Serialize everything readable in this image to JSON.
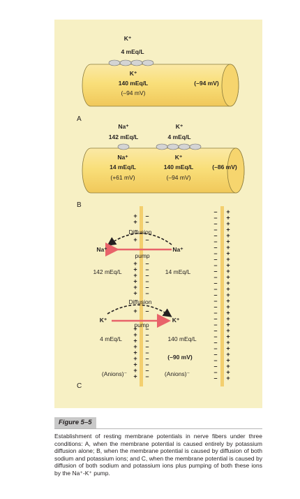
{
  "panels": {
    "a": {
      "label": "A",
      "outside_ion": "K⁺",
      "outside_conc": "4 mEq/L",
      "inside_ion": "K⁺",
      "inside_conc": "140 mEq/L",
      "inside_potential": "(–94 mV)",
      "membrane_potential": "(–94 mV)"
    },
    "b": {
      "label": "B",
      "na_outside_ion": "Na⁺",
      "na_outside_conc": "142 mEq/L",
      "k_outside_ion": "K⁺",
      "k_outside_conc": "4 mEq/L",
      "na_inside_ion": "Na⁺",
      "na_inside_conc": "14 mEq/L",
      "na_potential": "(+61 mV)",
      "k_inside_ion": "K⁺",
      "k_inside_conc": "140 mEq/L",
      "k_potential": "(–94 mV)",
      "membrane_potential": "(–86 mV)"
    },
    "c": {
      "label": "C",
      "diffusion_na": "Diffusion",
      "pump_na": "pump",
      "na_left": "Na⁺",
      "na_right": "Na⁺",
      "na_outside_conc": "142 mEq/L",
      "na_inside_conc": "14 mEq/L",
      "diffusion_k": "Diffusion",
      "pump_k": "pump",
      "k_left": "K⁺",
      "k_right": "K⁺",
      "k_outside_conc": "4 mEq/L",
      "k_inside_conc": "140 mEq/L",
      "membrane_potential": "(–90 mV)",
      "anions_outside": "(Anions)⁻",
      "anions_inside": "(Anions)⁻"
    }
  },
  "caption": {
    "label": "Figure 5–5",
    "text": "Establishment of resting membrane potentials in nerve fibers under three conditions: A, when the membrane potential is caused entirely by potassium diffusion alone; B, when the membrane potential is caused by diffusion of both sodium and potassium ions; and C, when the membrane potential is caused by diffusion of both sodium and potassium ions plus pumping of both these ions by the Na⁺-K⁺ pump."
  },
  "colors": {
    "panel_bg": "#f7f0c4",
    "fiber_fill": "#f9df7a",
    "fiber_stroke": "#8a7a3a",
    "membrane": "#f3cf6e",
    "pump_arrow": "#e8636a",
    "channel": "#d4d4d4"
  }
}
